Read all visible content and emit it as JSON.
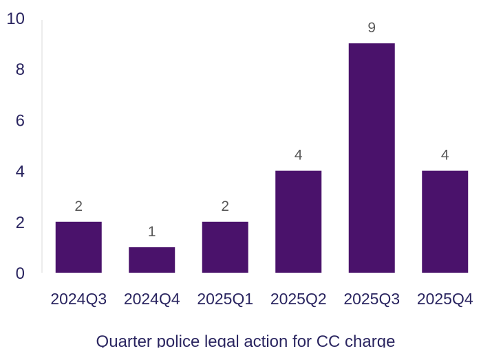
{
  "chart_data": {
    "type": "bar",
    "categories": [
      "2024Q3",
      "2024Q4",
      "2025Q1",
      "2025Q2",
      "2025Q3",
      "2025Q4"
    ],
    "values": [
      2,
      1,
      2,
      4,
      9,
      4
    ],
    "data_labels": [
      "2",
      "1",
      "2",
      "4",
      "9",
      "4"
    ],
    "y_ticks": [
      "0",
      "2",
      "4",
      "6",
      "8",
      "10"
    ],
    "ylim": [
      0,
      10
    ],
    "xlabel": "Quarter police legal action for CC charge",
    "ylabel": "",
    "title": "",
    "grid": false,
    "legend": "none",
    "colors": {
      "bar": "#4a126b",
      "axis_text": "#2a2560",
      "data_label": "#595959",
      "axis_line": "#d9d9d9"
    }
  }
}
